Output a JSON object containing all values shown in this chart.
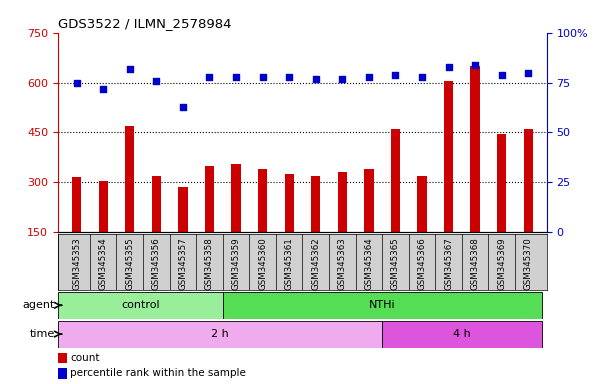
{
  "title": "GDS3522 / ILMN_2578984",
  "samples": [
    "GSM345353",
    "GSM345354",
    "GSM345355",
    "GSM345356",
    "GSM345357",
    "GSM345358",
    "GSM345359",
    "GSM345360",
    "GSM345361",
    "GSM345362",
    "GSM345363",
    "GSM345364",
    "GSM345365",
    "GSM345366",
    "GSM345367",
    "GSM345368",
    "GSM345369",
    "GSM345370"
  ],
  "counts": [
    315,
    305,
    470,
    320,
    285,
    350,
    355,
    340,
    325,
    320,
    330,
    340,
    460,
    320,
    605,
    650,
    445,
    460
  ],
  "percentile_ranks": [
    75,
    72,
    82,
    76,
    63,
    78,
    78,
    78,
    78,
    77,
    77,
    78,
    79,
    78,
    83,
    84,
    79,
    80
  ],
  "bar_color": "#cc0000",
  "dot_color": "#0000cc",
  "left_ylim": [
    150,
    750
  ],
  "left_yticks": [
    150,
    300,
    450,
    600,
    750
  ],
  "right_ylim": [
    0,
    100
  ],
  "right_yticks": [
    0,
    25,
    50,
    75,
    100
  ],
  "hlines": [
    300,
    450,
    600
  ],
  "agent_groups": [
    {
      "label": "control",
      "start": 0,
      "end": 6,
      "color": "#99ee99"
    },
    {
      "label": "NTHi",
      "start": 6,
      "end": 18,
      "color": "#55dd55"
    }
  ],
  "time_groups": [
    {
      "label": "2 h",
      "start": 0,
      "end": 12,
      "color": "#f0aaee"
    },
    {
      "label": "4 h",
      "start": 12,
      "end": 18,
      "color": "#dd55dd"
    }
  ],
  "legend_items": [
    {
      "label": "count",
      "color": "#cc0000"
    },
    {
      "label": "percentile rank within the sample",
      "color": "#0000cc"
    }
  ],
  "label_bg_color": "#d0d0d0",
  "plot_bg_color": "#ffffff"
}
